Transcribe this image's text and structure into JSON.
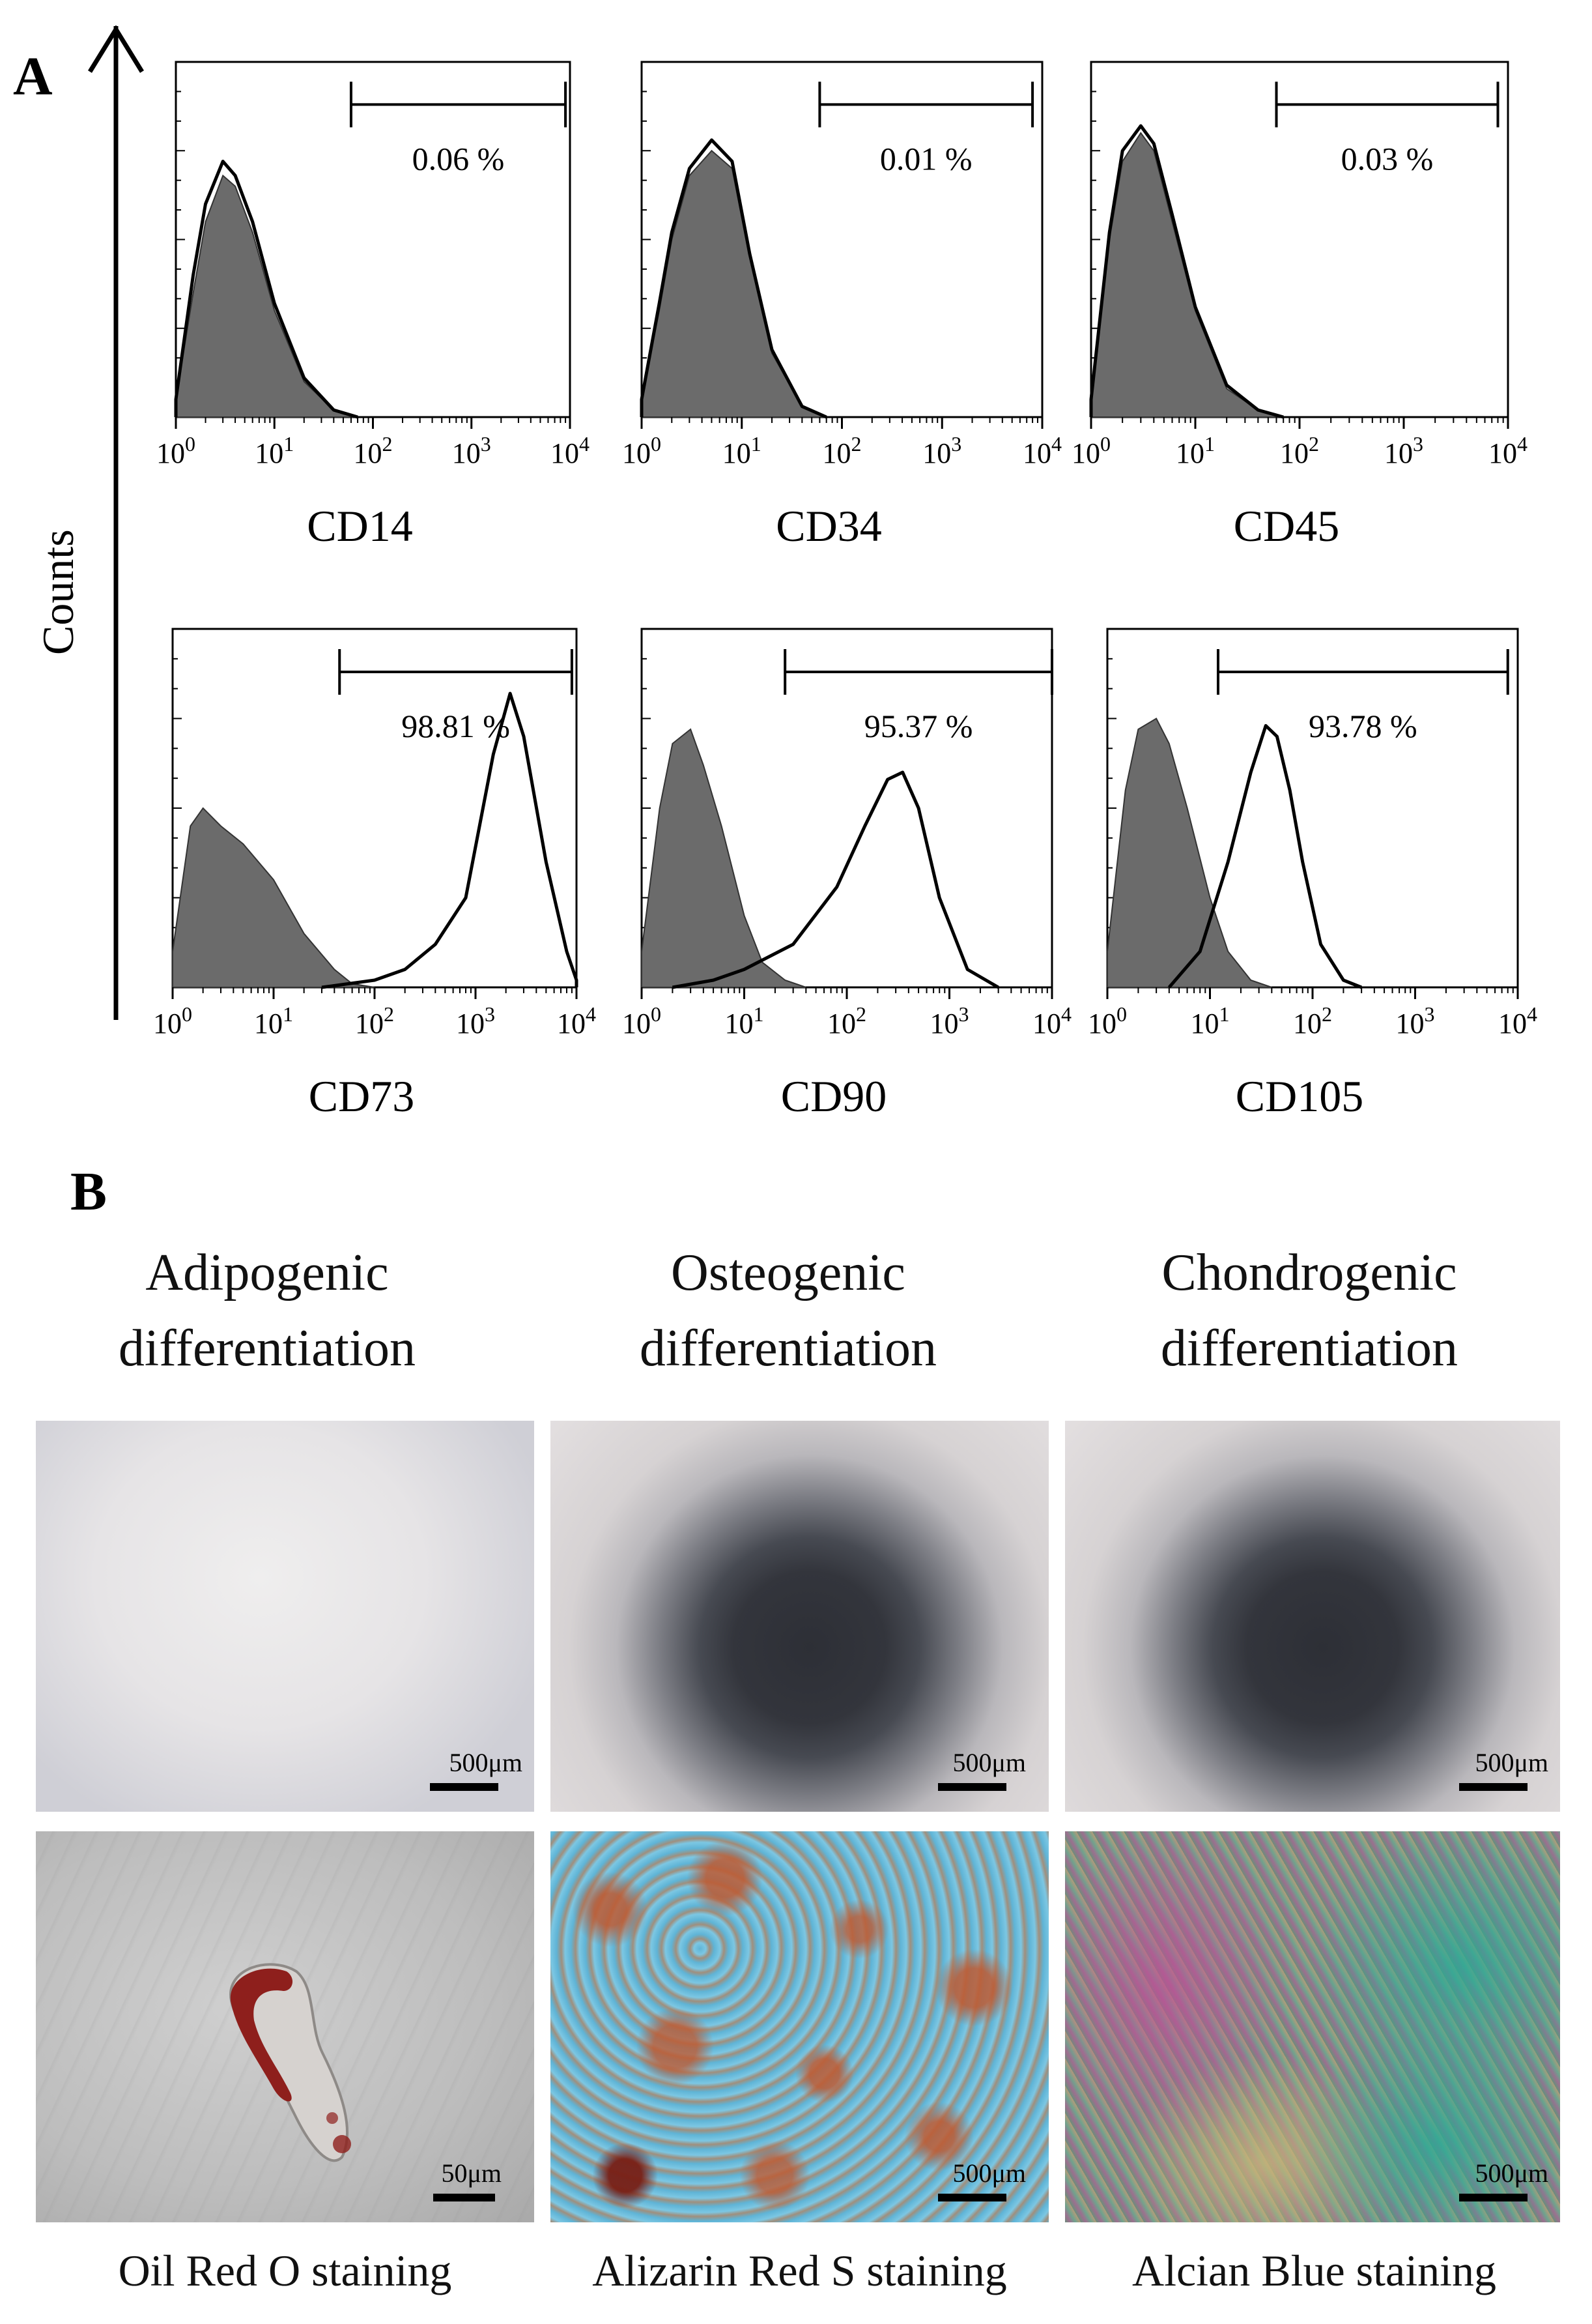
{
  "figure": {
    "panel_a_label": "A",
    "panel_b_label": "B",
    "y_axis_label": "Counts"
  },
  "chart_data": [
    {
      "type": "area",
      "marker": "CD14",
      "xlabel": "CD14",
      "x_scale": "log",
      "xlim": [
        1,
        10000
      ],
      "x_ticks": [
        "10^0",
        "10^1",
        "10^2",
        "10^3",
        "10^4"
      ],
      "gate": [
        60,
        9000
      ],
      "gate_label": "0.06 %",
      "series": [
        {
          "role": "isotype-filled",
          "x": [
            1,
            1.5,
            2,
            3,
            4,
            6,
            10,
            20,
            40,
            70
          ],
          "y": [
            0.05,
            0.35,
            0.55,
            0.68,
            0.65,
            0.52,
            0.3,
            0.1,
            0.02,
            0
          ]
        },
        {
          "role": "marker-outline",
          "x": [
            1,
            1.5,
            2,
            3,
            4,
            6,
            10,
            20,
            40,
            70
          ],
          "y": [
            0.05,
            0.4,
            0.6,
            0.72,
            0.68,
            0.55,
            0.32,
            0.11,
            0.02,
            0
          ]
        }
      ]
    },
    {
      "type": "area",
      "marker": "CD34",
      "xlabel": "CD34",
      "x_scale": "log",
      "xlim": [
        1,
        10000
      ],
      "x_ticks": [
        "10^0",
        "10^1",
        "10^2",
        "10^3",
        "10^4"
      ],
      "gate": [
        60,
        8000
      ],
      "gate_label": "0.01 %",
      "series": [
        {
          "role": "isotype-filled",
          "x": [
            1,
            1.5,
            2,
            3,
            5,
            8,
            12,
            20,
            40,
            70
          ],
          "y": [
            0.05,
            0.3,
            0.5,
            0.68,
            0.75,
            0.7,
            0.45,
            0.18,
            0.03,
            0
          ]
        },
        {
          "role": "marker-outline",
          "x": [
            1,
            1.5,
            2,
            3,
            5,
            8,
            12,
            20,
            40,
            70
          ],
          "y": [
            0.05,
            0.32,
            0.52,
            0.7,
            0.78,
            0.72,
            0.46,
            0.19,
            0.03,
            0
          ]
        }
      ]
    },
    {
      "type": "area",
      "marker": "CD45",
      "xlabel": "CD45",
      "x_scale": "log",
      "xlim": [
        1,
        10000
      ],
      "x_ticks": [
        "10^0",
        "10^1",
        "10^2",
        "10^3",
        "10^4"
      ],
      "gate": [
        60,
        8000
      ],
      "gate_label": "0.03 %",
      "series": [
        {
          "role": "isotype-filled",
          "x": [
            1,
            1.5,
            2,
            3,
            4,
            6,
            10,
            20,
            40,
            70
          ],
          "y": [
            0.05,
            0.5,
            0.72,
            0.8,
            0.75,
            0.55,
            0.3,
            0.08,
            0.02,
            0
          ]
        },
        {
          "role": "marker-outline",
          "x": [
            1,
            1.5,
            2,
            3,
            4,
            6,
            10,
            20,
            40,
            70
          ],
          "y": [
            0.05,
            0.52,
            0.75,
            0.82,
            0.77,
            0.57,
            0.31,
            0.09,
            0.02,
            0
          ]
        }
      ]
    },
    {
      "type": "area",
      "marker": "CD73",
      "xlabel": "CD73",
      "x_scale": "log",
      "xlim": [
        1,
        10000
      ],
      "x_ticks": [
        "10^0",
        "10^1",
        "10^2",
        "10^3",
        "10^4"
      ],
      "gate": [
        45,
        9000
      ],
      "gate_label": "98.81 %",
      "series": [
        {
          "role": "isotype-filled",
          "x": [
            1,
            1.5,
            2,
            3,
            5,
            10,
            20,
            40,
            60,
            100
          ],
          "y": [
            0.1,
            0.45,
            0.5,
            0.45,
            0.4,
            0.3,
            0.15,
            0.05,
            0.01,
            0
          ]
        },
        {
          "role": "marker-outline",
          "x": [
            30,
            100,
            200,
            400,
            800,
            1500,
            2200,
            3000,
            5000,
            8000,
            10000
          ],
          "y": [
            0,
            0.02,
            0.05,
            0.12,
            0.25,
            0.65,
            0.82,
            0.7,
            0.35,
            0.1,
            0.02
          ]
        }
      ]
    },
    {
      "type": "area",
      "marker": "CD90",
      "xlabel": "CD90",
      "x_scale": "log",
      "xlim": [
        1,
        10000
      ],
      "x_ticks": [
        "10^0",
        "10^1",
        "10^2",
        "10^3",
        "10^4"
      ],
      "gate": [
        25,
        10000
      ],
      "gate_label": "95.37 %",
      "series": [
        {
          "role": "isotype-filled",
          "x": [
            1,
            1.5,
            2,
            3,
            4,
            6,
            10,
            15,
            25,
            40
          ],
          "y": [
            0.1,
            0.5,
            0.68,
            0.72,
            0.62,
            0.45,
            0.2,
            0.07,
            0.02,
            0
          ]
        },
        {
          "role": "marker-outline",
          "x": [
            2,
            5,
            10,
            30,
            80,
            150,
            250,
            350,
            500,
            800,
            1500,
            3000
          ],
          "y": [
            0,
            0.02,
            0.05,
            0.12,
            0.28,
            0.45,
            0.58,
            0.6,
            0.5,
            0.25,
            0.05,
            0
          ]
        }
      ]
    },
    {
      "type": "area",
      "marker": "CD105",
      "xlabel": "CD105",
      "x_scale": "log",
      "xlim": [
        1,
        10000
      ],
      "x_ticks": [
        "10^0",
        "10^1",
        "10^2",
        "10^3",
        "10^4"
      ],
      "gate": [
        12,
        8000
      ],
      "gate_label": "93.78 %",
      "series": [
        {
          "role": "isotype-filled",
          "x": [
            1,
            1.5,
            2,
            3,
            4,
            6,
            10,
            15,
            25,
            40
          ],
          "y": [
            0.1,
            0.55,
            0.72,
            0.75,
            0.68,
            0.5,
            0.25,
            0.1,
            0.02,
            0
          ]
        },
        {
          "role": "marker-outline",
          "x": [
            4,
            8,
            15,
            25,
            35,
            45,
            60,
            80,
            120,
            200,
            300
          ],
          "y": [
            0,
            0.1,
            0.35,
            0.6,
            0.73,
            0.7,
            0.55,
            0.35,
            0.12,
            0.02,
            0
          ]
        }
      ]
    }
  ],
  "panel_b": {
    "columns": [
      {
        "header": "Adipogenic differentiation",
        "top_scale": "500μm",
        "bottom_scale": "50μm",
        "caption": "Oil Red O staining"
      },
      {
        "header": "Osteogenic differentiation",
        "top_scale": "500μm",
        "bottom_scale": "500μm",
        "caption": "Alizarin Red S staining"
      },
      {
        "header": "Chondrogenic differentiation",
        "top_scale": "500μm",
        "bottom_scale": "500μm",
        "caption": "Alcian Blue staining"
      }
    ]
  },
  "colors": {
    "isotype_fill": "#6b6b6b",
    "outline": "#000000",
    "frame": "#000000"
  }
}
